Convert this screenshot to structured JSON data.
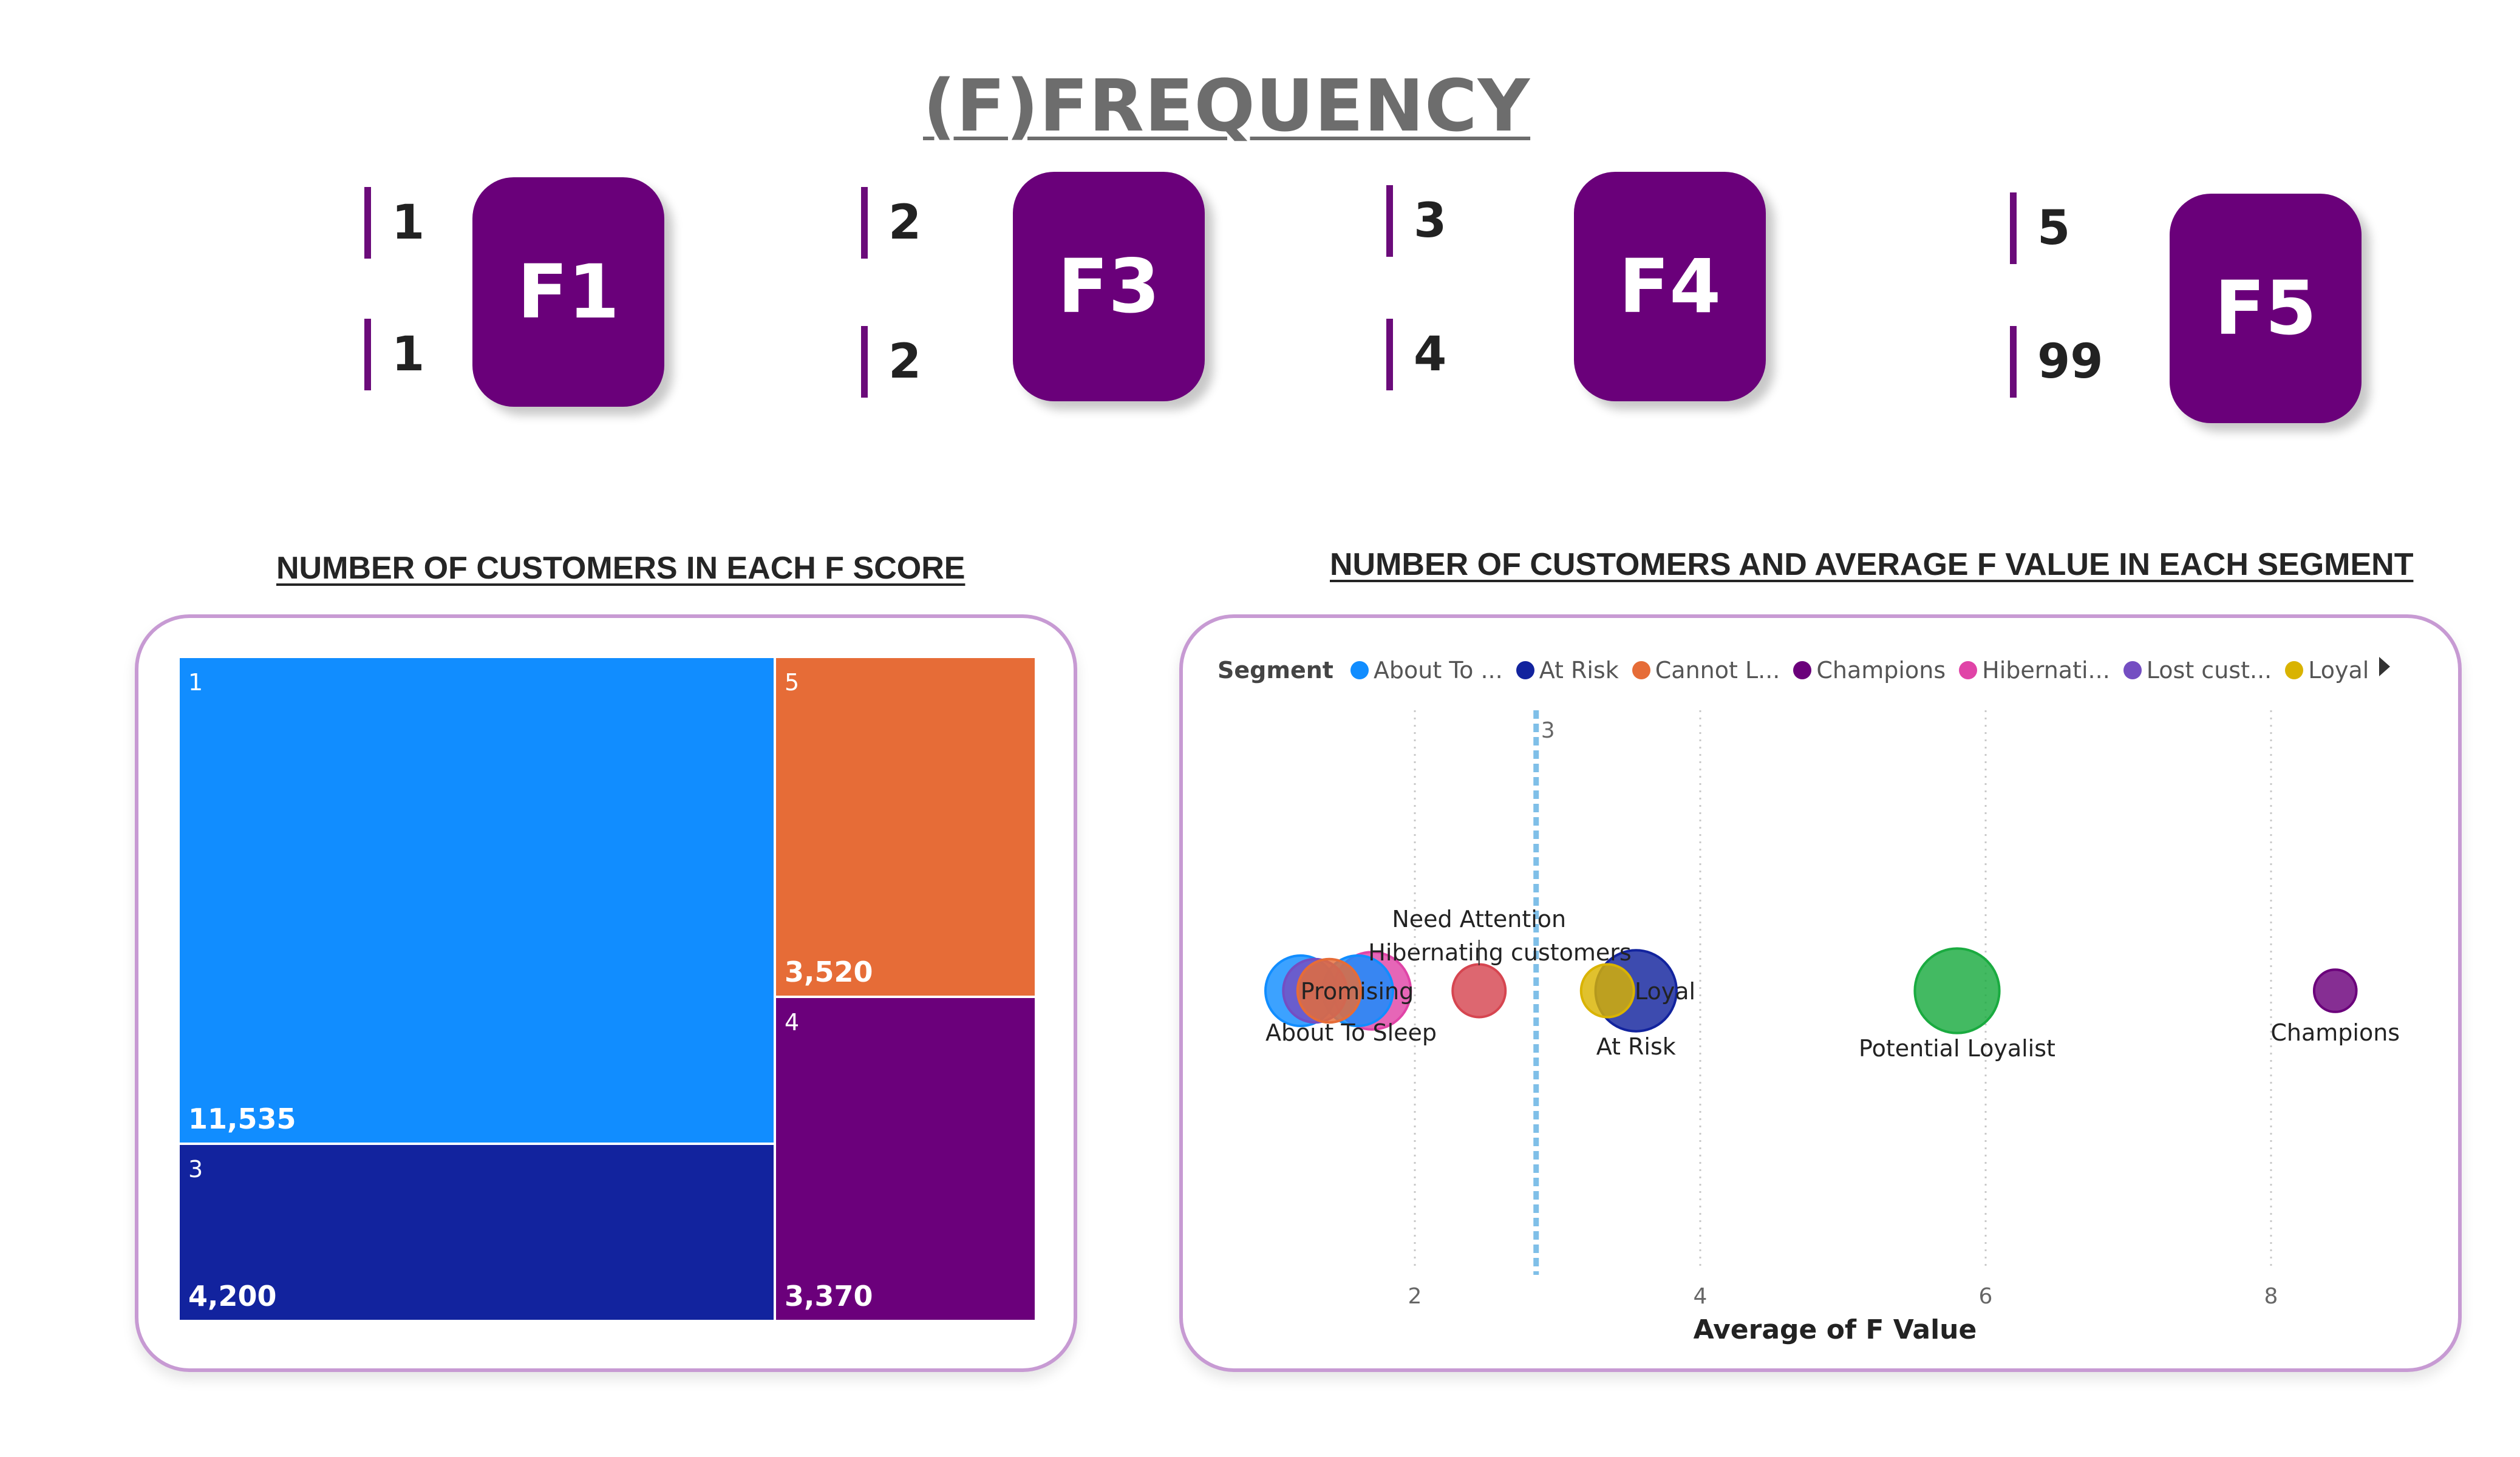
{
  "title": "(F)FREQUENCY",
  "f_scores": [
    {
      "card": "F1",
      "min": "1",
      "max": "1"
    },
    {
      "card": "F3",
      "min": "2",
      "max": "2"
    },
    {
      "card": "F4",
      "min": "3",
      "max": "4"
    },
    {
      "card": "F5",
      "min": "5",
      "max": "99"
    }
  ],
  "treemap": {
    "title": "NUMBER OF CUSTOMERS IN EACH F SCORE",
    "cells": [
      {
        "label": "1",
        "value": "11,535",
        "color": "#118dff"
      },
      {
        "label": "3",
        "value": "4,200",
        "color": "#12239e"
      },
      {
        "label": "5",
        "value": "3,520",
        "color": "#e66c37"
      },
      {
        "label": "4",
        "value": "3,370",
        "color": "#6b007b"
      }
    ]
  },
  "scatter": {
    "title": "NUMBER OF CUSTOMERS AND AVERAGE F VALUE IN EACH SEGMENT",
    "legend_title": "Segment",
    "legend": [
      {
        "label": "About To ...",
        "color": "#118dff"
      },
      {
        "label": "At Risk",
        "color": "#12239e"
      },
      {
        "label": "Cannot L...",
        "color": "#e66c37"
      },
      {
        "label": "Champions",
        "color": "#6b007b"
      },
      {
        "label": "Hibernati...",
        "color": "#e044a7"
      },
      {
        "label": "Lost cust...",
        "color": "#744ec2"
      },
      {
        "label": "Loyal",
        "color": "#d9b300"
      }
    ],
    "xlabel": "Average of F Value",
    "reference_line_label": "3"
  },
  "chart_data": {
    "type": "scatter",
    "title": "NUMBER OF CUSTOMERS AND AVERAGE F VALUE IN EACH SEGMENT",
    "xlabel": "Average of F Value",
    "ylabel": "",
    "xlim": [
      1.0,
      9.0
    ],
    "xticks": [
      2,
      4,
      6,
      8
    ],
    "grid": "vertical dotted",
    "legend_position": "top",
    "reference_line": {
      "x": 2.85,
      "label": "3"
    },
    "points": [
      {
        "segment": "About To Sleep",
        "x": 1.2,
        "y": 0,
        "size": 1.0,
        "color": "#118dff",
        "label": "About To Sleep"
      },
      {
        "segment": "Lost customers",
        "x": 1.3,
        "y": 0,
        "size": 0.9,
        "color": "#744ec2",
        "label": ""
      },
      {
        "segment": "Cannot Lose Them",
        "x": 1.4,
        "y": 0,
        "size": 0.9,
        "color": "#e66c37",
        "label": ""
      },
      {
        "segment": "Hibernating customers",
        "x": 1.7,
        "y": 0,
        "size": 1.1,
        "color": "#e044a7",
        "label": "Hibernating customers"
      },
      {
        "segment": "Promising",
        "x": 1.6,
        "y": 0,
        "size": 1.0,
        "color": "#118dff",
        "label": "Promising"
      },
      {
        "segment": "Need Attention",
        "x": 2.45,
        "y": 0,
        "size": 0.75,
        "color": "#d64550",
        "label": "Need Attention"
      },
      {
        "segment": "Loyal",
        "x": 3.35,
        "y": 0,
        "size": 0.75,
        "color": "#d9b300",
        "label": "Loyal"
      },
      {
        "segment": "At Risk",
        "x": 3.55,
        "y": 0,
        "size": 1.15,
        "color": "#12239e",
        "label": "At Risk"
      },
      {
        "segment": "Potential Loyalist",
        "x": 5.8,
        "y": 0,
        "size": 1.2,
        "color": "#1aab40",
        "label": "Potential Loyalist"
      },
      {
        "segment": "Champions",
        "x": 8.45,
        "y": 0,
        "size": 0.6,
        "color": "#6b007b",
        "label": "Champions"
      }
    ]
  }
}
